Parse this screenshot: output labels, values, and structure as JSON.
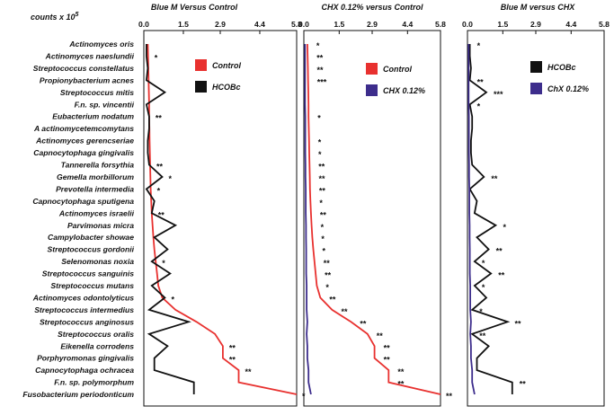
{
  "y_axis_label": "counts x 10",
  "y_axis_exponent": "5",
  "species": [
    "Actinomyces oris",
    "Actinomyces naeslundii",
    "Streptococcus constellatus",
    "Propionybacterium acnes",
    "Streptococcus mitis",
    "F.n. sp. vincentii",
    "Eubacterium nodatum",
    "A actinomycetemcomytans",
    "Actinomyces gerencseriae",
    "Capnocytophaga gingivalis",
    "Tannerella forsythia",
    "Gemella morbillorum",
    "Prevotella intermedia",
    "Capnocytophaga sputigena",
    "Actinomyces israelii",
    "Parvimonas micra",
    "Campylobacter showae",
    "Streptococcus gordonii",
    "Selenomonas noxia",
    "Streptococcus sanguinis",
    "Streptococcus mutans",
    "Actinomyces odontolyticus",
    "Streptococcus intermedius",
    "Streptococcus anginosus",
    "Streptococcus oralis",
    "Eikenella corrodens",
    "Porphyromonas gingivalis",
    "Capnocytophaga ochracea",
    "F.n. sp. polymorphum",
    "Fusobacterium periodonticum"
  ],
  "chart_data": [
    {
      "type": "line",
      "title": "Blue M  Versus Control",
      "xlim": [
        0,
        5.8
      ],
      "x_ticks": [
        "0.0",
        "1.5",
        "2.9",
        "4.4",
        "5.8"
      ],
      "series": [
        {
          "name": "Control",
          "color": "#e8312f",
          "values": [
            0.15,
            0.16,
            0.17,
            0.18,
            0.19,
            0.2,
            0.2,
            0.21,
            0.22,
            0.23,
            0.24,
            0.25,
            0.26,
            0.28,
            0.3,
            0.33,
            0.36,
            0.4,
            0.45,
            0.5,
            0.55,
            0.7,
            1.2,
            2.0,
            2.7,
            3.0,
            3.0,
            3.6,
            3.6,
            5.8
          ]
        },
        {
          "name": "HCOBc",
          "color": "#111111",
          "values": [
            0.1,
            0.1,
            0.15,
            0.1,
            0.8,
            0.1,
            0.2,
            0.2,
            0.15,
            0.15,
            0.2,
            0.7,
            0.1,
            0.4,
            0.3,
            1.2,
            0.4,
            0.9,
            0.3,
            1.0,
            0.3,
            0.8,
            0.2,
            1.7,
            0.2,
            0.9,
            0.4,
            0.4,
            1.9,
            1.9
          ]
        }
      ],
      "significance": [
        "",
        "*",
        "",
        "",
        "",
        "",
        "**",
        "",
        "",
        "",
        "**",
        "*",
        "*",
        "",
        "**",
        "",
        "",
        "",
        "*",
        "",
        "",
        "*",
        "",
        "",
        "",
        "**",
        "**",
        "**",
        "",
        "*"
      ],
      "legend_position": "top-right"
    },
    {
      "type": "line",
      "title": "CHX 0.12% versus Control",
      "xlim": [
        0,
        5.8
      ],
      "x_ticks": [
        "0.0",
        "1.5",
        "2.9",
        "4.4",
        "5.8"
      ],
      "series": [
        {
          "name": "Control",
          "color": "#e8312f",
          "values": [
            0.15,
            0.16,
            0.17,
            0.18,
            0.19,
            0.2,
            0.2,
            0.21,
            0.22,
            0.23,
            0.24,
            0.25,
            0.26,
            0.28,
            0.3,
            0.33,
            0.36,
            0.4,
            0.45,
            0.5,
            0.55,
            0.7,
            1.2,
            2.0,
            2.7,
            3.0,
            3.0,
            3.6,
            3.6,
            5.8
          ]
        },
        {
          "name": "CHX 0.12%",
          "color": "#3d2d8c",
          "values": [
            0.05,
            0.05,
            0.05,
            0.05,
            0.05,
            0.05,
            0.06,
            0.06,
            0.06,
            0.06,
            0.07,
            0.07,
            0.08,
            0.08,
            0.08,
            0.09,
            0.09,
            0.1,
            0.1,
            0.1,
            0.12,
            0.12,
            0.12,
            0.15,
            0.12,
            0.15,
            0.15,
            0.2,
            0.2,
            0.3
          ]
        }
      ],
      "significance": [
        "*",
        "**",
        "**",
        "***",
        "",
        "",
        "*",
        "",
        "*",
        "*",
        "**",
        "**",
        "**",
        "*",
        "**",
        "*",
        "*",
        "*",
        "**",
        "**",
        "*",
        "**",
        "**",
        "**",
        "**",
        "**",
        "**",
        "**",
        "**",
        "**"
      ],
      "legend_position": "top-right"
    },
    {
      "type": "line",
      "title": "Blue M versus CHX",
      "xlim": [
        0,
        5.8
      ],
      "x_ticks": [
        "0.0",
        "1.5",
        "2.9",
        "4.4",
        "5.8"
      ],
      "series": [
        {
          "name": "HCOBc",
          "color": "#111111",
          "values": [
            0.1,
            0.1,
            0.15,
            0.1,
            0.8,
            0.1,
            0.2,
            0.2,
            0.15,
            0.15,
            0.2,
            0.7,
            0.1,
            0.4,
            0.3,
            1.2,
            0.4,
            0.9,
            0.3,
            1.0,
            0.3,
            0.8,
            0.2,
            1.7,
            0.2,
            0.9,
            0.4,
            0.4,
            1.9,
            1.9
          ]
        },
        {
          "name": "ChX 0.12%",
          "color": "#3d2d8c",
          "values": [
            0.05,
            0.05,
            0.05,
            0.05,
            0.05,
            0.05,
            0.06,
            0.06,
            0.06,
            0.06,
            0.07,
            0.07,
            0.08,
            0.08,
            0.08,
            0.09,
            0.09,
            0.1,
            0.1,
            0.1,
            0.12,
            0.12,
            0.12,
            0.15,
            0.12,
            0.15,
            0.15,
            0.2,
            0.2,
            0.3
          ]
        }
      ],
      "significance": [
        "*",
        "",
        "",
        "**",
        "***",
        "*",
        "",
        "",
        "",
        "",
        "",
        "**",
        "",
        "",
        "",
        "*",
        "",
        "**",
        "*",
        "**",
        "*",
        "",
        "*",
        "**",
        "**",
        "",
        "",
        "",
        "**",
        ""
      ],
      "legend_position": "top-right"
    }
  ]
}
